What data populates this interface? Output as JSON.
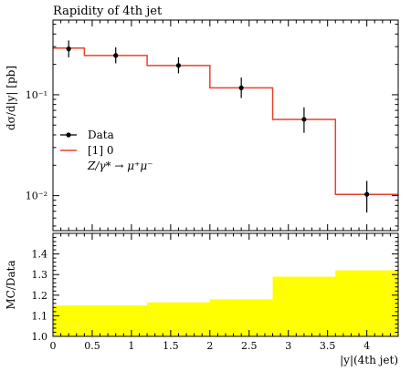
{
  "title": "Rapidity of 4th jet",
  "chart_data": [
    {
      "type": "line",
      "title": "Rapidity of 4th jet",
      "ylabel": "dσ/d|y| [pb]",
      "xlabel": "",
      "yscale": "log",
      "xlim": [
        0,
        4.4
      ],
      "ylim": [
        0.0045,
        0.55
      ],
      "y_ticks": [
        {
          "value": 0.1,
          "label": "10⁻¹"
        },
        {
          "value": 0.01,
          "label": "10⁻²"
        }
      ],
      "legend_position": "center-left",
      "series": [
        {
          "name": "Data",
          "kind": "points-with-errors",
          "color": "#000000",
          "points": [
            {
              "x": 0.2,
              "y": 0.285,
              "lo": 0.235,
              "hi": 0.345
            },
            {
              "x": 0.8,
              "y": 0.245,
              "lo": 0.205,
              "hi": 0.295
            },
            {
              "x": 1.6,
              "y": 0.195,
              "lo": 0.163,
              "hi": 0.235
            },
            {
              "x": 2.4,
              "y": 0.117,
              "lo": 0.093,
              "hi": 0.148
            },
            {
              "x": 3.2,
              "y": 0.057,
              "lo": 0.042,
              "hi": 0.075
            },
            {
              "x": 4.0,
              "y": 0.0103,
              "lo": 0.0068,
              "hi": 0.014
            }
          ]
        },
        {
          "name": "[1] 0",
          "kind": "step",
          "color": "#e8412e",
          "edges": [
            0,
            0.4,
            1.2,
            2.0,
            2.8,
            3.6,
            4.4
          ],
          "values": [
            0.29,
            0.245,
            0.195,
            0.117,
            0.057,
            0.0103
          ]
        }
      ],
      "legend_extra": "Z/γ* → μ⁺μ⁻"
    },
    {
      "type": "area",
      "ylabel": "MC/Data",
      "xlabel": "|y|(4th jet)",
      "xlim": [
        0,
        4.4
      ],
      "ylim": [
        1.0,
        1.5
      ],
      "y_ticks": [
        1.0,
        1.1,
        1.2,
        1.3,
        1.4
      ],
      "x_ticks": [
        0,
        0.5,
        1,
        1.5,
        2,
        2.5,
        3,
        3.5,
        4
      ],
      "series": [
        {
          "name": "MC/Data band",
          "kind": "step-fill",
          "color": "#ffff00",
          "edges": [
            0,
            0.4,
            1.2,
            2.0,
            2.8,
            3.6,
            4.4
          ],
          "values": [
            1.15,
            1.15,
            1.165,
            1.18,
            1.29,
            1.32
          ]
        }
      ]
    }
  ]
}
